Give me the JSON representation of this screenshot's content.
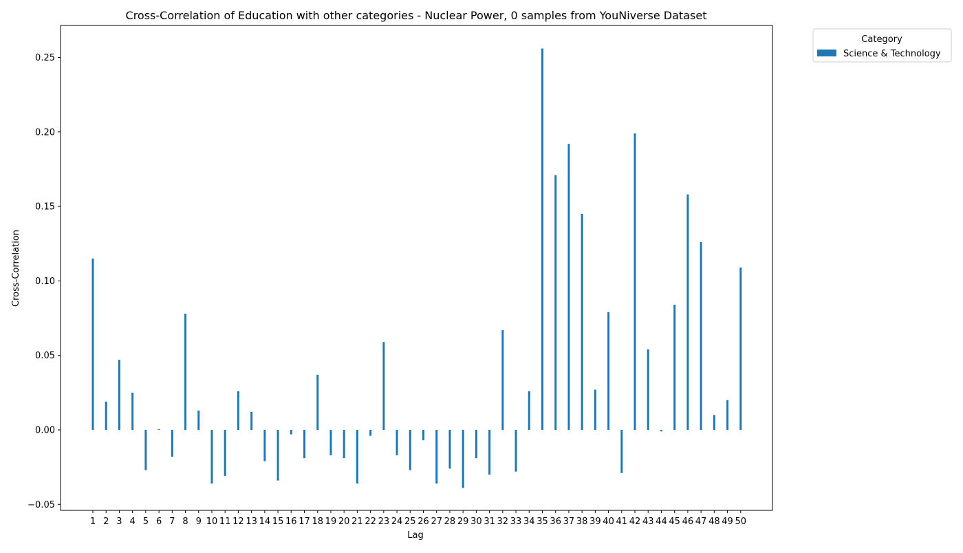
{
  "chart_data": {
    "type": "bar",
    "title": "Cross-Correlation of Education with other categories - Nuclear Power, 0 samples from YouNiverse Dataset",
    "xlabel": "Lag",
    "ylabel": "Cross-Correlation",
    "ylim": [
      -0.05,
      0.25
    ],
    "yticks": [
      -0.05,
      0.0,
      0.05,
      0.1,
      0.15,
      0.2,
      0.25
    ],
    "ytick_labels": [
      "−0.05",
      "0.00",
      "0.05",
      "0.10",
      "0.15",
      "0.20",
      "0.25"
    ],
    "grid": false,
    "legend": {
      "title": "Category",
      "placement": "outside-top-right"
    },
    "categories": [
      "1",
      "2",
      "3",
      "4",
      "5",
      "6",
      "7",
      "8",
      "9",
      "10",
      "11",
      "12",
      "13",
      "14",
      "15",
      "16",
      "17",
      "18",
      "19",
      "20",
      "21",
      "22",
      "23",
      "24",
      "25",
      "26",
      "27",
      "28",
      "29",
      "30",
      "31",
      "32",
      "33",
      "34",
      "35",
      "36",
      "37",
      "38",
      "39",
      "40",
      "41",
      "42",
      "43",
      "44",
      "45",
      "46",
      "47",
      "48",
      "49",
      "50"
    ],
    "series": [
      {
        "name": "Science & Technology",
        "color": "#1f77b4",
        "values": [
          0.115,
          0.019,
          0.047,
          0.025,
          -0.027,
          0.0005,
          -0.018,
          0.078,
          0.013,
          -0.036,
          -0.031,
          0.026,
          0.012,
          -0.021,
          -0.034,
          -0.003,
          -0.019,
          0.037,
          -0.017,
          -0.019,
          -0.036,
          -0.004,
          0.059,
          -0.017,
          -0.027,
          -0.007,
          -0.036,
          -0.026,
          -0.039,
          -0.019,
          -0.03,
          0.067,
          -0.028,
          0.026,
          0.256,
          0.171,
          0.192,
          0.145,
          0.027,
          0.079,
          -0.029,
          0.199,
          0.054,
          -0.001,
          0.084,
          0.158,
          0.126,
          0.01,
          0.02,
          0.109
        ]
      }
    ]
  }
}
